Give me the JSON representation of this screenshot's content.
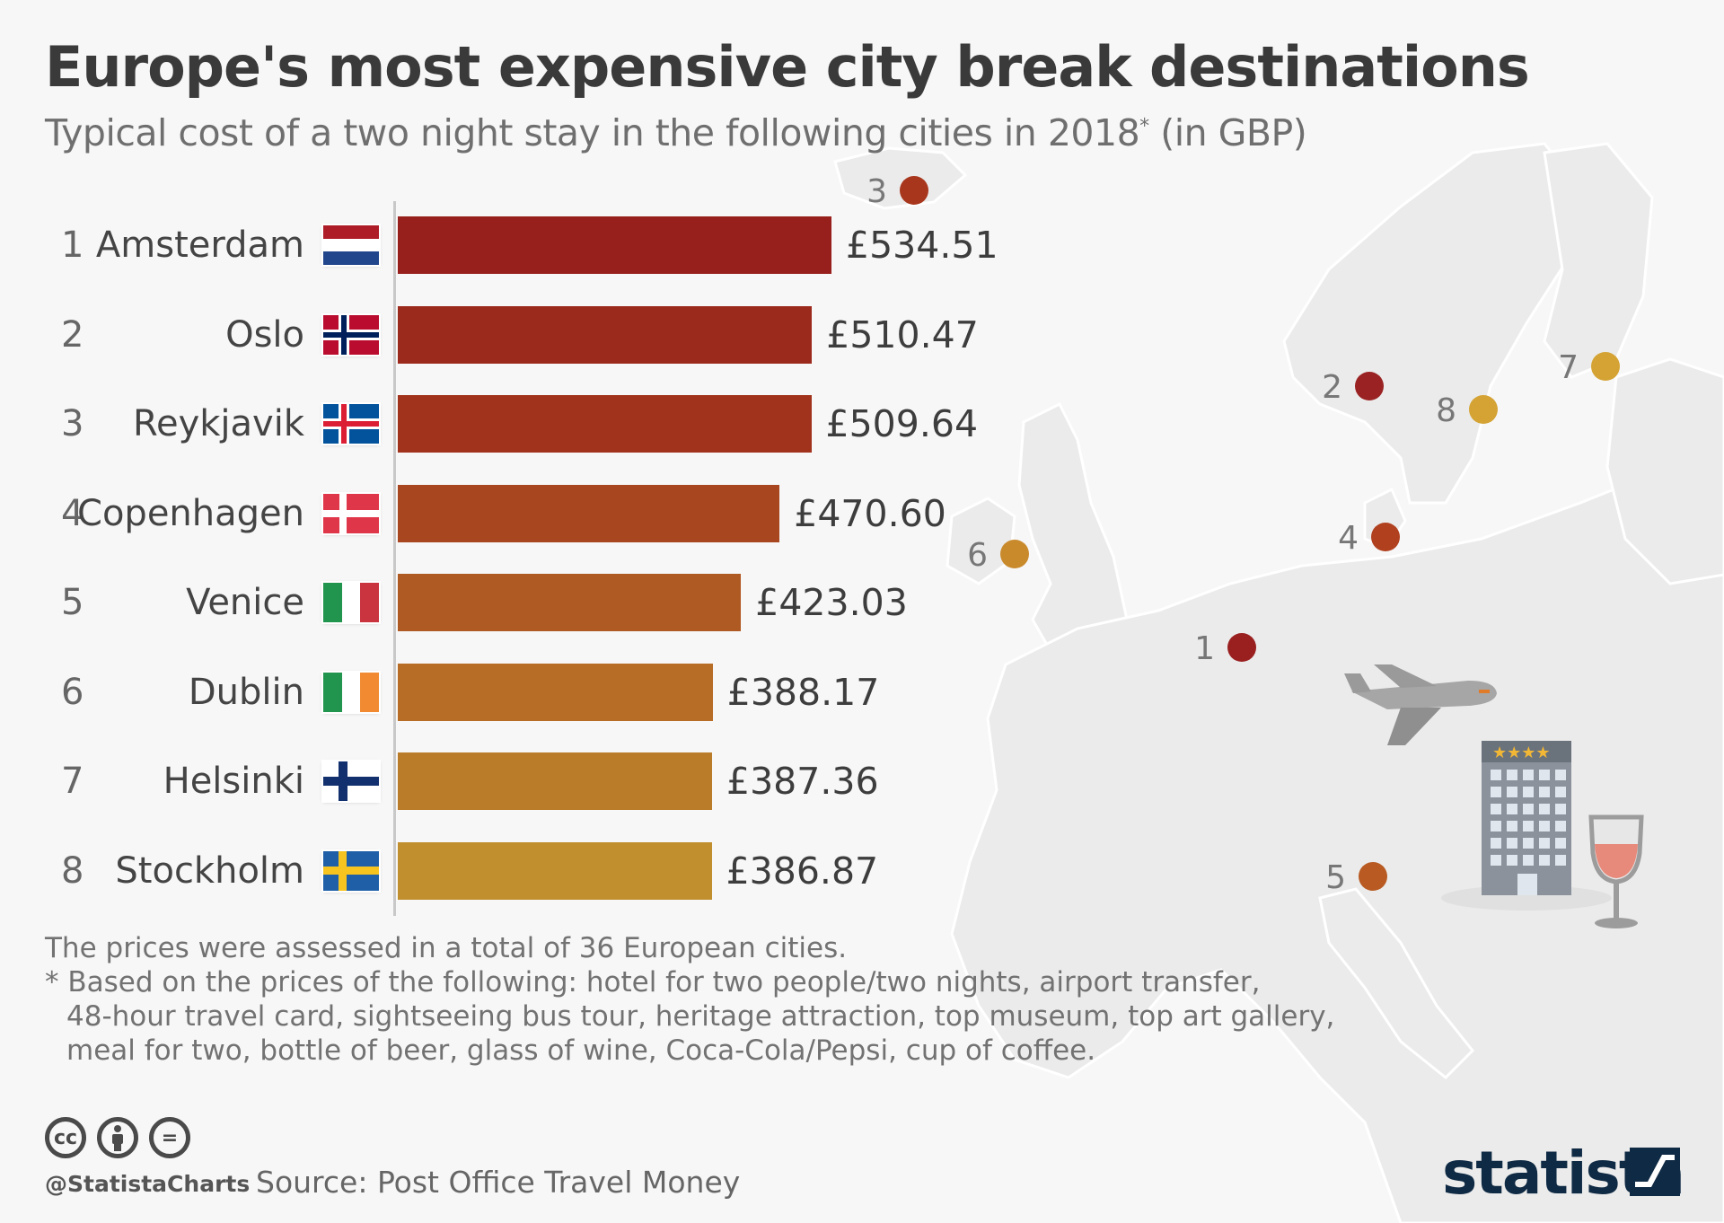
{
  "title": "Europe's most expensive city break destinations",
  "subtitle": "Typical cost of a two night stay in the following cities in 2018",
  "subtitle_mark": "*",
  "subtitle_unit": " (in GBP)",
  "chart_data": {
    "type": "bar",
    "orientation": "horizontal",
    "title": "Europe's most expensive city break destinations",
    "subtitle": "Typical cost of a two night stay in the following cities in 2018* (in GBP)",
    "categories": [
      "Amsterdam",
      "Oslo",
      "Reykjavik",
      "Copenhagen",
      "Venice",
      "Dublin",
      "Helsinki",
      "Stockholm"
    ],
    "ranks": [
      "1",
      "2",
      "3",
      "4",
      "5",
      "6",
      "7",
      "8"
    ],
    "values": [
      534.51,
      510.47,
      509.64,
      470.6,
      423.03,
      388.17,
      387.36,
      386.87
    ],
    "value_labels": [
      "£534.51",
      "£510.47",
      "£509.64",
      "£470.60",
      "£423.03",
      "£388.17",
      "£387.36",
      "£386.87"
    ],
    "xlim": [
      0,
      534.51
    ],
    "grid": false,
    "bar_colors": [
      "#98201c",
      "#9c2a1c",
      "#a1331c",
      "#a8461f",
      "#b05a23",
      "#b86d27",
      "#bb7c2a",
      "#c28f2f"
    ],
    "flags": [
      "netherlands-flag",
      "norway-flag",
      "iceland-flag",
      "denmark-flag",
      "italy-flag",
      "ireland-flag",
      "finland-flag",
      "sweden-flag"
    ]
  },
  "map_markers": [
    {
      "label": "3",
      "color": "#a8361c"
    },
    {
      "label": "2",
      "color": "#9a2222"
    },
    {
      "label": "7",
      "color": "#d4a334"
    },
    {
      "label": "8",
      "color": "#d4a334"
    },
    {
      "label": "4",
      "color": "#b0401e"
    },
    {
      "label": "6",
      "color": "#c98a2c"
    },
    {
      "label": "1",
      "color": "#9a1f1f"
    },
    {
      "label": "5",
      "color": "#b85a22"
    }
  ],
  "footnotes": [
    "The prices were assessed in a total of 36 European cities.",
    "* Based on the prices of the following: hotel for two people/two nights, airport transfer,",
    "48-hour travel card, sightseeing bus tour, heritage attraction, top museum, top art gallery,",
    "meal for two, bottle of beer, glass of wine, Coca-Cola/Pepsi, cup of coffee."
  ],
  "license_icons": [
    "cc",
    "by",
    "nd"
  ],
  "license_labels": [
    "cc",
    "",
    "="
  ],
  "handle": "@StatistaCharts",
  "source": "Source: Post Office Travel Money",
  "brand": "statista",
  "icons": [
    "airplane-icon",
    "hotel-icon",
    "wine-glass-icon"
  ]
}
